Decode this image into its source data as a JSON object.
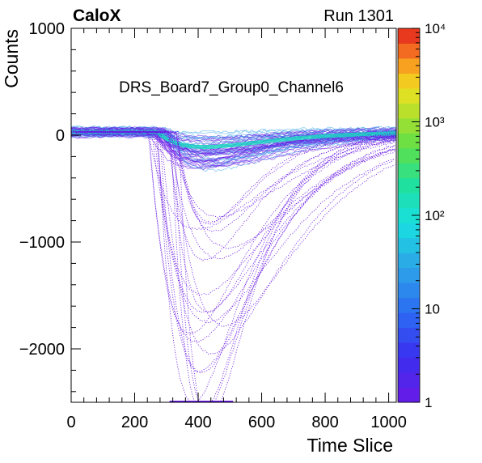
{
  "header": {
    "left": "CaloX",
    "right": "Run 1301"
  },
  "chart_data": {
    "type": "heatmap",
    "title": "DRS_Board7_Group0_Channel6",
    "xlabel": "Time Slice",
    "ylabel": "Counts",
    "xlim": [
      0,
      1024
    ],
    "ylim": [
      -2500,
      1000
    ],
    "x_ticks": [
      0,
      200,
      400,
      600,
      800,
      1000
    ],
    "x_tick_labels": [
      "0",
      "200",
      "400",
      "600",
      "800",
      "1000"
    ],
    "y_ticks": [
      -2000,
      -1000,
      0,
      1000
    ],
    "y_tick_labels": [
      "−2000",
      "−1000",
      "0",
      "1000"
    ],
    "z_scale": "log",
    "zlim": [
      1,
      10000
    ],
    "z_ticks": [
      1,
      10,
      100,
      1000,
      10000
    ],
    "z_tick_labels": [
      "1",
      "10",
      "10²",
      "10³",
      "10⁴"
    ],
    "baseline_counts": 30,
    "pulse": {
      "onset_slice": 250,
      "peak_slice": 430,
      "mean_peak_counts": -400,
      "deepest_peak_counts": -2500
    },
    "colors": {
      "low": "#6a1be6",
      "mid": "#2ea3e8",
      "high": "#18e0c0",
      "max": "#e0201c"
    },
    "grid": false,
    "legend": "colorbar-right"
  }
}
